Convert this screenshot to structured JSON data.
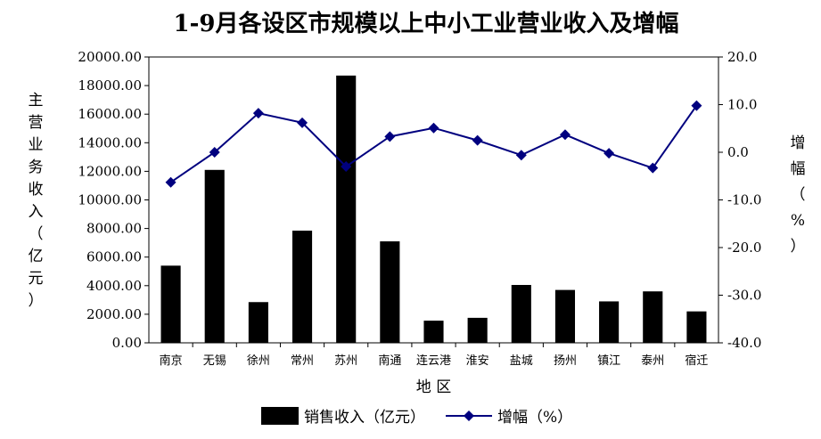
{
  "chart_data": {
    "type": "bar",
    "title": "1-9月各设区市规模以上中小工业营业收入及增幅",
    "xlabel": "地  区",
    "ylabel": "主营业务收入（亿元）",
    "y2label": "增幅（%）",
    "categories": [
      "南京",
      "无锡",
      "徐州",
      "常州",
      "苏州",
      "南通",
      "连云港",
      "淮安",
      "盐城",
      "扬州",
      "镇江",
      "泰州",
      "宿迁"
    ],
    "ylim": [
      0,
      20000
    ],
    "y2lim": [
      -40,
      20
    ],
    "yticks": [
      "0.00",
      "2000.00",
      "4000.00",
      "6000.00",
      "8000.00",
      "10000.00",
      "12000.00",
      "14000.00",
      "16000.00",
      "18000.00",
      "20000.00"
    ],
    "y2ticks": [
      "-40.0",
      "-30.0",
      "-20.0",
      "-10.0",
      "0.0",
      "10.0",
      "20.0"
    ],
    "grid": false,
    "legend_position": "bottom",
    "series": [
      {
        "name": "销售收入（亿元）",
        "type": "bar",
        "axis": "left",
        "color": "#000000",
        "values": [
          5400,
          12100,
          2850,
          7850,
          18700,
          7100,
          1550,
          1750,
          4050,
          3700,
          2900,
          3600,
          2200
        ]
      },
      {
        "name": "增幅（%）",
        "type": "line",
        "axis": "right",
        "color": "#00007f",
        "marker": "diamond",
        "values": [
          -6.3,
          0.0,
          8.2,
          6.2,
          -3.0,
          3.3,
          5.1,
          2.5,
          -0.6,
          3.7,
          -0.2,
          -3.3,
          9.8
        ]
      }
    ]
  }
}
